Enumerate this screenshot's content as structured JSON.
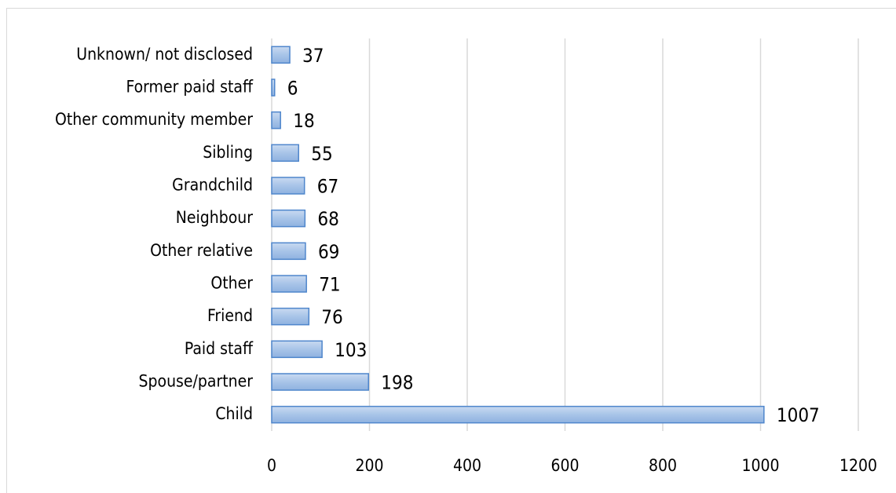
{
  "chart_data": {
    "type": "hbar",
    "categories": [
      "Unknown/ not disclosed",
      "Former paid staff",
      "Other community member",
      "Sibling",
      "Grandchild",
      "Neighbour",
      "Other relative",
      "Other",
      "Friend",
      "Paid staff",
      "Spouse/partner",
      "Child"
    ],
    "values": [
      37,
      6,
      18,
      55,
      67,
      68,
      69,
      71,
      76,
      103,
      198,
      1007
    ],
    "color": "#a8c4e8",
    "edge_color": "#4f86cc",
    "xlim": [
      0,
      1200
    ],
    "xticks": [
      0,
      200,
      400,
      600,
      800,
      1000,
      1200
    ],
    "grid": true,
    "data_labels": true
  }
}
